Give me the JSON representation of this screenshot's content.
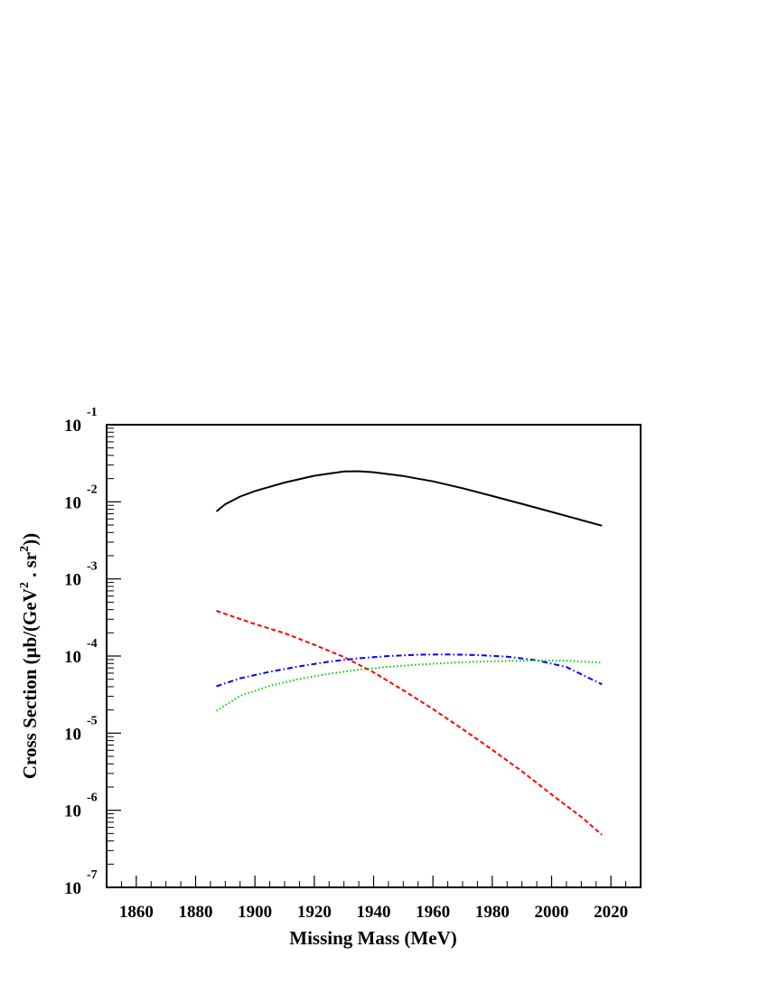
{
  "chart_data": {
    "type": "line",
    "title": "",
    "xlabel": "Missing Mass (MeV)",
    "ylabel": "Cross Section (μb/(GeV² . sr²))",
    "ylabel_parts": {
      "prefix": "Cross Section (",
      "mu": "μ",
      "mid": "b/(GeV",
      "sup1": "2",
      "sep": " . sr",
      "sup2": "2",
      "suffix": "))"
    },
    "xlim": [
      1850,
      2030
    ],
    "ylim": [
      1e-07,
      0.1
    ],
    "yscale": "log",
    "x_ticks": [
      1860,
      1880,
      1900,
      1920,
      1940,
      1960,
      1980,
      2000,
      2020
    ],
    "y_ticks": [
      {
        "base": "10",
        "exp": "-7",
        "value": 1e-07
      },
      {
        "base": "10",
        "exp": "-6",
        "value": 1e-06
      },
      {
        "base": "10",
        "exp": "-5",
        "value": 1e-05
      },
      {
        "base": "10",
        "exp": "-4",
        "value": 0.0001
      },
      {
        "base": "10",
        "exp": "-3",
        "value": 0.001
      },
      {
        "base": "10",
        "exp": "-2",
        "value": 0.01
      },
      {
        "base": "10",
        "exp": "-1",
        "value": 0.1
      }
    ],
    "grid": false,
    "legend": "none",
    "series": [
      {
        "color": "#000000",
        "style": "solid",
        "x": [
          1887,
          1890,
          1895,
          1900,
          1910,
          1920,
          1930,
          1935,
          1940,
          1950,
          1960,
          1970,
          1980,
          1990,
          2000,
          2010,
          2017
        ],
        "y": [
          0.0075,
          0.0093,
          0.0117,
          0.0138,
          0.0178,
          0.0218,
          0.0248,
          0.0249,
          0.0242,
          0.0216,
          0.0184,
          0.015,
          0.0119,
          0.0094,
          0.0074,
          0.0058,
          0.0049
        ]
      },
      {
        "color": "#ff0000",
        "style": "dashed",
        "x": [
          1887,
          1900,
          1910,
          1920,
          1930,
          1940,
          1950,
          1960,
          1970,
          1980,
          1990,
          2000,
          2010,
          2017
        ],
        "y": [
          0.000385,
          0.00026,
          0.000198,
          0.00014,
          9.7e-05,
          6.15e-05,
          3.6e-05,
          2.05e-05,
          1.13e-05,
          6.1e-06,
          3.2e-06,
          1.6e-06,
          8.2e-07,
          4.8e-07
        ]
      },
      {
        "color": "#0000ff",
        "style": "dashdot",
        "x": [
          1887,
          1895,
          1905,
          1915,
          1925,
          1935,
          1945,
          1955,
          1965,
          1975,
          1985,
          1995,
          2005,
          2017
        ],
        "y": [
          4.05e-05,
          5.15e-05,
          6.25e-05,
          7.35e-05,
          8.45e-05,
          9.35e-05,
          0.0001,
          0.000104,
          0.000105,
          0.000103,
          9.8e-05,
          8.8e-05,
          7.2e-05,
          4.3e-05
        ]
      },
      {
        "color": "#00cc00",
        "style": "dotted",
        "x": [
          1887,
          1895,
          1905,
          1915,
          1925,
          1935,
          1945,
          1955,
          1965,
          1975,
          1985,
          1995,
          2005,
          2017
        ],
        "y": [
          1.95e-05,
          3.05e-05,
          4.1e-05,
          5.05e-05,
          5.9e-05,
          6.65e-05,
          7.25e-05,
          7.75e-05,
          8.15e-05,
          8.45e-05,
          8.65e-05,
          8.75e-05,
          8.7e-05,
          8.2e-05
        ]
      }
    ]
  }
}
